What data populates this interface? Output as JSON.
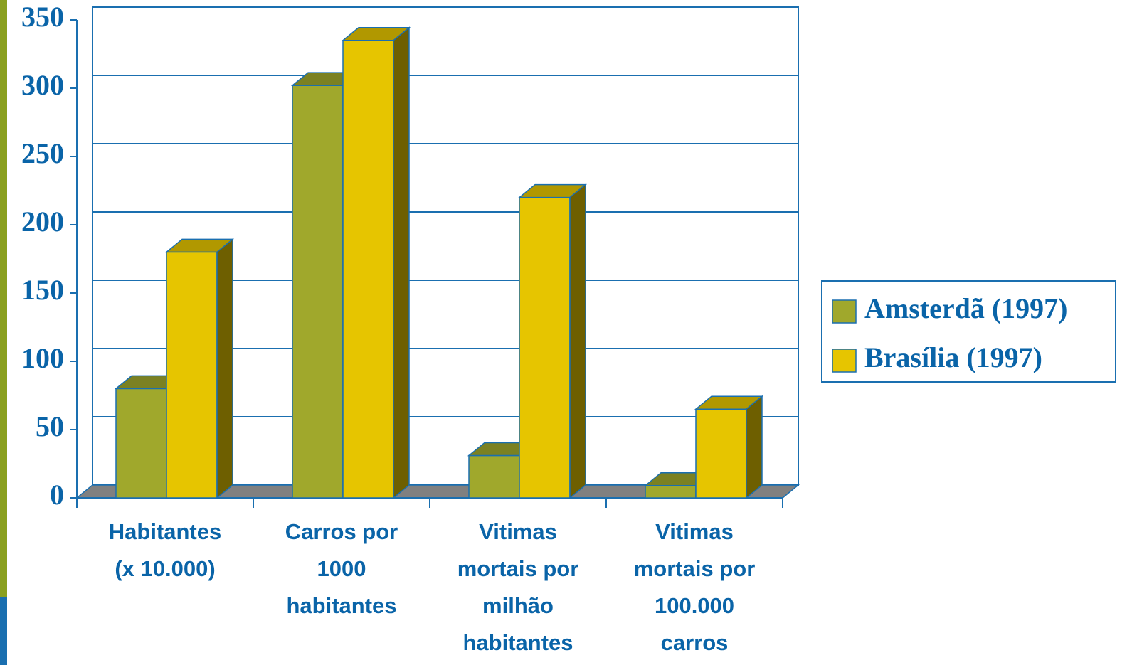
{
  "chart_data": {
    "type": "bar3d",
    "categories": [
      "Habitantes\n(x 10.000)",
      "Carros por\n1000\nhabitantes",
      "Vitimas\nmortais por\nmilhão\nhabitantes",
      "Vitimas\nmortais por\n100.000\ncarros"
    ],
    "series": [
      {
        "name": "Amsterdã (1997)",
        "color": "#a0a82c",
        "values": [
          80,
          302,
          31,
          9
        ]
      },
      {
        "name": "Brasília (1997)",
        "color": "#e6c500",
        "values": [
          180,
          335,
          220,
          65
        ]
      }
    ],
    "ylim": [
      0,
      350
    ],
    "yticks": [
      0,
      50,
      100,
      150,
      200,
      250,
      300,
      350
    ],
    "grid": true,
    "legend": "right"
  }
}
